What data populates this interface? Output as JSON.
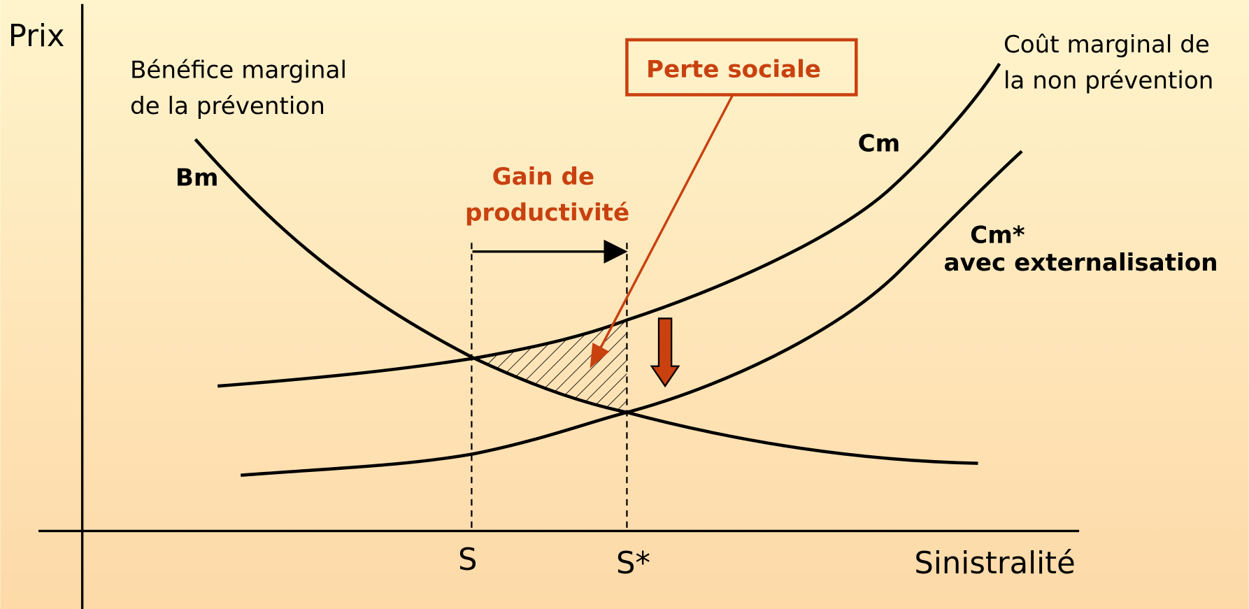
{
  "axes": {
    "y_label": "Prix",
    "x_label": "Sinistralité",
    "x_points": [
      "S",
      "S*"
    ]
  },
  "curves": [
    {
      "label": "Bm",
      "description": [
        "Bénéfice marginal",
        "de la prévention"
      ]
    },
    {
      "label": "Cm",
      "description": [
        "Coût marginal de",
        "la non prévention"
      ]
    },
    {
      "label": "Cm*",
      "description": [
        "avec externalisation"
      ]
    }
  ],
  "annotations": {
    "gain": [
      "Gain de",
      "productivité"
    ],
    "loss": "Perte sociale"
  }
}
